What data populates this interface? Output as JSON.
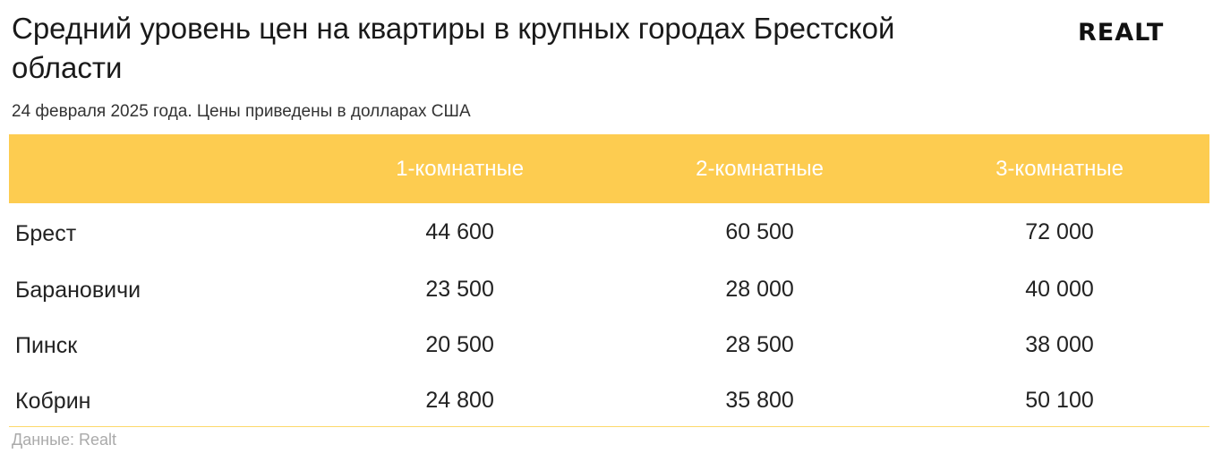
{
  "chart_data": {
    "type": "table",
    "title": "Средний уровень цен на квартиры в крупных городах Брестской области",
    "subtitle": "24 февраля 2025 года. Цены приведены в долларах США",
    "columns": [
      "",
      "1-комнатные",
      "2-комнатные",
      "3-комнатные"
    ],
    "rows": [
      {
        "city": "Брест",
        "values": [
          "44 600",
          "60 500",
          "72 000"
        ]
      },
      {
        "city": "Барановичи",
        "values": [
          "23 500",
          "28 000",
          "40 000"
        ]
      },
      {
        "city": "Пинск",
        "values": [
          "20 500",
          "28 500",
          "38 000"
        ]
      },
      {
        "city": "Кобрин",
        "values": [
          "24 800",
          "35 800",
          "50 100"
        ]
      }
    ],
    "source": "Данные: Realt",
    "header_color": "#fdcc50"
  },
  "logo": {
    "text": "REALT"
  }
}
